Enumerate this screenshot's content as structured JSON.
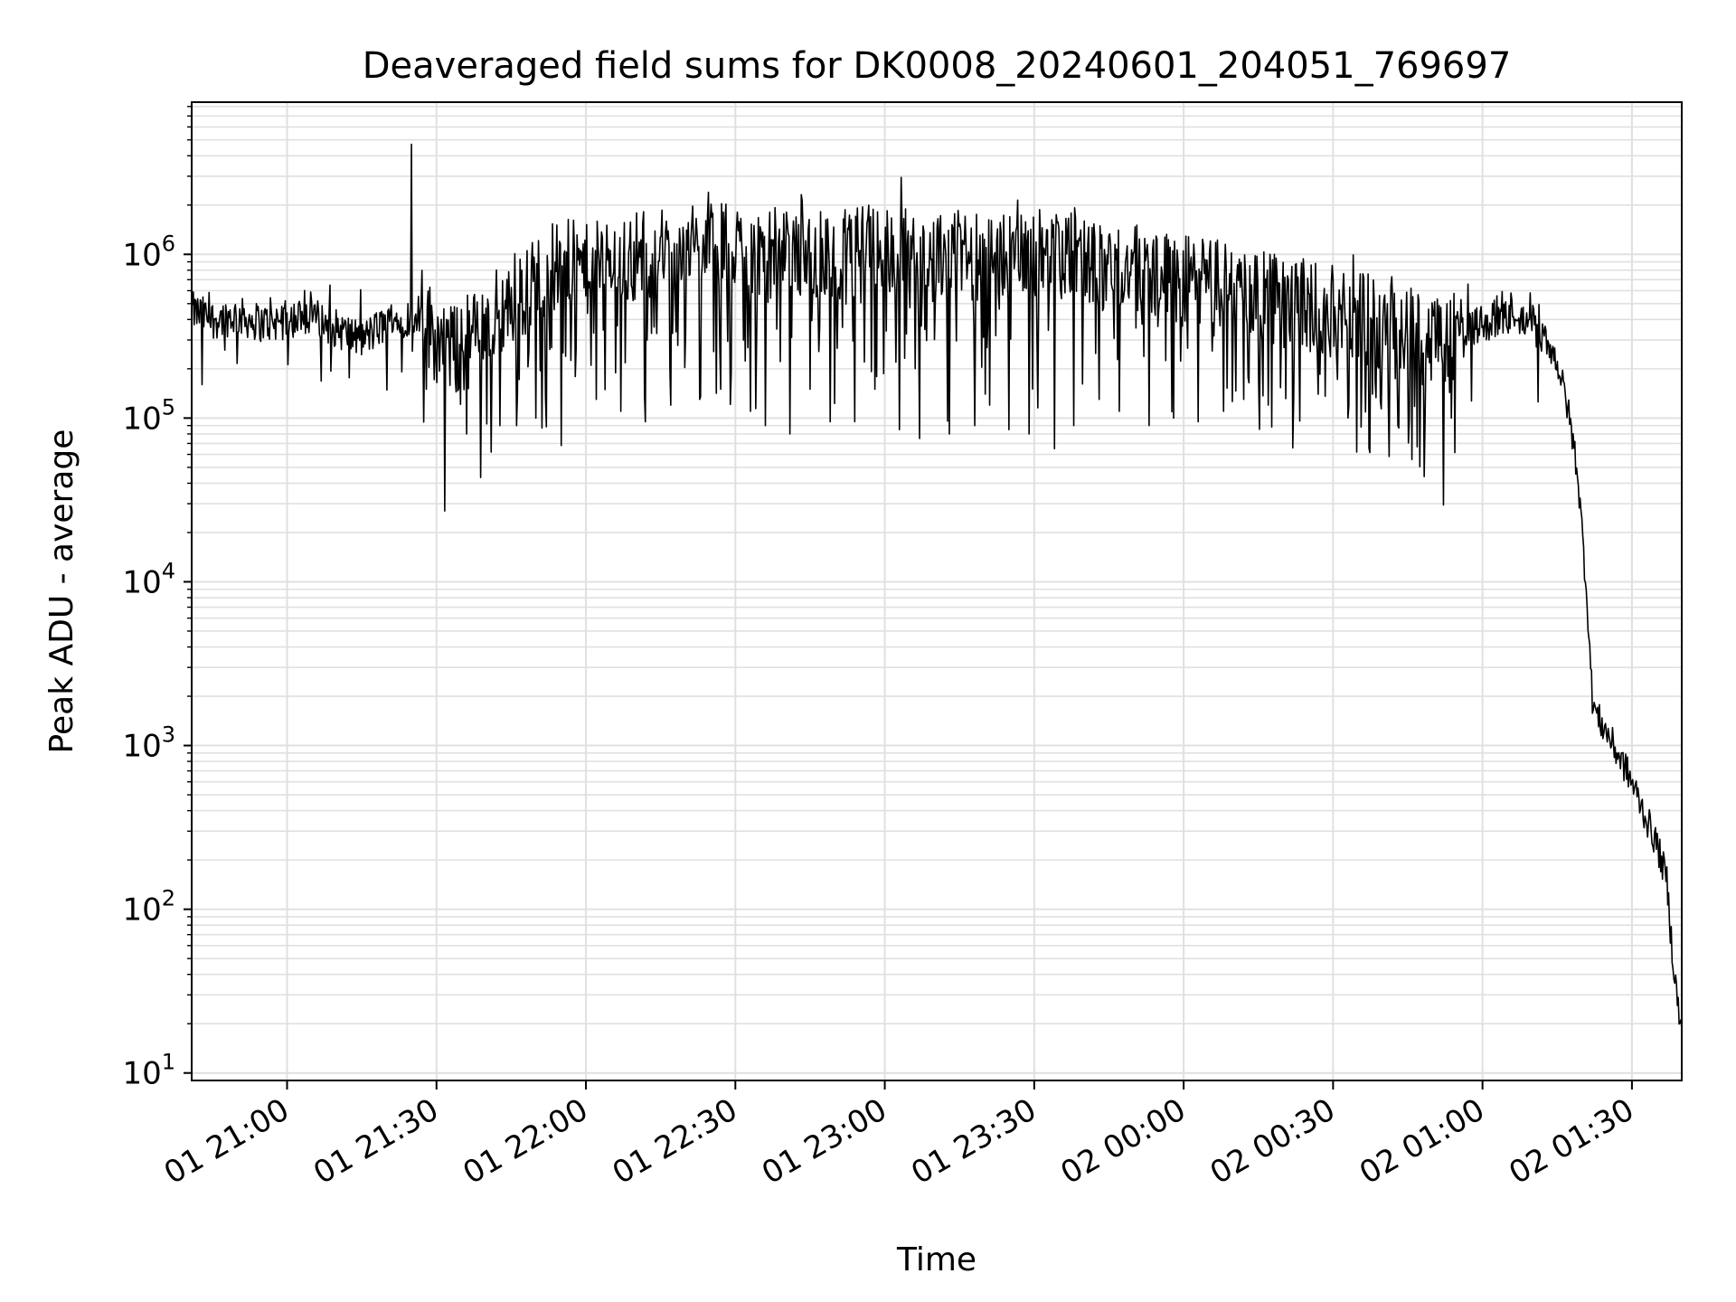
{
  "chart_data": {
    "type": "line",
    "title": "Deaveraged field sums for DK0008_20240601_204051_769697",
    "xlabel": "Time",
    "ylabel": "Peak ADU - average",
    "yscale": "log",
    "grid": "on (major and minor)",
    "legend": "none",
    "xlim": [
      "2024-06-01 20:40:51",
      "2024-06-02 01:40:00"
    ],
    "ylim": [
      9,
      8500000
    ],
    "x_ticks": [
      {
        "time": "2024-06-01 21:00",
        "label": "01 21:00"
      },
      {
        "time": "2024-06-01 21:30",
        "label": "01 21:30"
      },
      {
        "time": "2024-06-01 22:00",
        "label": "01 22:00"
      },
      {
        "time": "2024-06-01 22:30",
        "label": "01 22:30"
      },
      {
        "time": "2024-06-01 23:00",
        "label": "01 23:00"
      },
      {
        "time": "2024-06-01 23:30",
        "label": "01 23:30"
      },
      {
        "time": "2024-06-02 00:00",
        "label": "02 00:00"
      },
      {
        "time": "2024-06-02 00:30",
        "label": "02 00:30"
      },
      {
        "time": "2024-06-02 01:00",
        "label": "02 01:00"
      },
      {
        "time": "2024-06-02 01:30",
        "label": "02 01:30"
      }
    ],
    "y_ticks": [
      {
        "value": 10,
        "base": "10",
        "exp": "1"
      },
      {
        "value": 100,
        "base": "10",
        "exp": "2"
      },
      {
        "value": 1000,
        "base": "10",
        "exp": "3"
      },
      {
        "value": 10000,
        "base": "10",
        "exp": "4"
      },
      {
        "value": 100000,
        "base": "10",
        "exp": "5"
      },
      {
        "value": 1000000,
        "base": "10",
        "exp": "6"
      }
    ],
    "series": [
      {
        "color": "#000000",
        "x": [
          "2024-06-01 20:41",
          "2024-06-01 20:45",
          "2024-06-01 20:50",
          "2024-06-01 20:55",
          "2024-06-01 21:00",
          "2024-06-01 21:05",
          "2024-06-01 21:10",
          "2024-06-01 21:15",
          "2024-06-01 21:20",
          "2024-06-01 21:25",
          "2024-06-01 21:27",
          "2024-06-01 21:30",
          "2024-06-01 21:35",
          "2024-06-01 21:40",
          "2024-06-01 21:45",
          "2024-06-01 21:50",
          "2024-06-01 21:55",
          "2024-06-01 22:00",
          "2024-06-01 22:10",
          "2024-06-01 22:20",
          "2024-06-01 22:30",
          "2024-06-01 22:40",
          "2024-06-01 22:50",
          "2024-06-01 23:00",
          "2024-06-01 23:10",
          "2024-06-01 23:20",
          "2024-06-01 23:30",
          "2024-06-01 23:40",
          "2024-06-01 23:50",
          "2024-06-02 00:00",
          "2024-06-02 00:10",
          "2024-06-02 00:20",
          "2024-06-02 00:30",
          "2024-06-02 00:40",
          "2024-06-02 00:50",
          "2024-06-02 01:00",
          "2024-06-02 01:05",
          "2024-06-02 01:10",
          "2024-06-02 01:13",
          "2024-06-02 01:15",
          "2024-06-02 01:17",
          "2024-06-02 01:19",
          "2024-06-02 01:20",
          "2024-06-02 01:21",
          "2024-06-02 01:22",
          "2024-06-02 01:23",
          "2024-06-02 01:25",
          "2024-06-02 01:27",
          "2024-06-02 01:29",
          "2024-06-02 01:31",
          "2024-06-02 01:33",
          "2024-06-02 01:35",
          "2024-06-02 01:37",
          "2024-06-02 01:38",
          "2024-06-02 01:39",
          "2024-06-02 01:40"
        ],
        "y": [
          450000,
          400000,
          420000,
          380000,
          400000,
          420000,
          350000,
          300000,
          380000,
          420000,
          450000,
          300000,
          250000,
          400000,
          500000,
          700000,
          900000,
          800000,
          1000000,
          1100000,
          1100000,
          1000000,
          1000000,
          1100000,
          950000,
          1000000,
          1000000,
          900000,
          800000,
          700000,
          650000,
          500000,
          450000,
          380000,
          300000,
          380000,
          420000,
          380000,
          300000,
          220000,
          120000,
          50000,
          20000,
          8000,
          2000,
          1500,
          1200,
          900,
          700,
          500,
          350,
          250,
          150,
          60,
          30,
          17
        ],
        "spike": {
          "x": "2024-06-01 21:25",
          "y": 4700000
        },
        "dips": [
          {
            "x": "2024-06-01 20:43",
            "y": 160000
          },
          {
            "x": "2024-06-01 21:28",
            "y": 150000
          },
          {
            "x": "2024-06-01 21:36",
            "y": 80000
          },
          {
            "x": "2024-06-01 21:41",
            "y": 62000
          },
          {
            "x": "2024-06-01 21:46",
            "y": 90000
          },
          {
            "x": "2024-06-01 21:50",
            "y": 100000
          },
          {
            "x": "2024-06-01 21:55",
            "y": 68000
          },
          {
            "x": "2024-06-01 22:02",
            "y": 130000
          },
          {
            "x": "2024-06-01 22:07",
            "y": 110000
          },
          {
            "x": "2024-06-01 22:12",
            "y": 95000
          },
          {
            "x": "2024-06-01 22:17",
            "y": 120000
          },
          {
            "x": "2024-06-01 22:23",
            "y": 135000
          },
          {
            "x": "2024-06-01 22:27",
            "y": 150000
          },
          {
            "x": "2024-06-01 22:33",
            "y": 110000
          },
          {
            "x": "2024-06-01 22:36",
            "y": 90000
          },
          {
            "x": "2024-06-01 22:41",
            "y": 80000
          },
          {
            "x": "2024-06-01 22:45",
            "y": 150000
          },
          {
            "x": "2024-06-01 22:49",
            "y": 95000
          },
          {
            "x": "2024-06-01 22:54",
            "y": 95000
          },
          {
            "x": "2024-06-01 22:58",
            "y": 150000
          },
          {
            "x": "2024-06-01 23:03",
            "y": 85000
          },
          {
            "x": "2024-06-01 23:07",
            "y": 75000
          },
          {
            "x": "2024-06-01 23:13",
            "y": 80000
          },
          {
            "x": "2024-06-01 23:18",
            "y": 90000
          },
          {
            "x": "2024-06-01 23:21",
            "y": 120000
          },
          {
            "x": "2024-06-01 23:25",
            "y": 85000
          },
          {
            "x": "2024-06-01 23:29",
            "y": 80000
          },
          {
            "x": "2024-06-01 23:34",
            "y": 65000
          },
          {
            "x": "2024-06-01 23:38",
            "y": 90000
          },
          {
            "x": "2024-06-01 23:43",
            "y": 130000
          },
          {
            "x": "2024-06-01 23:47",
            "y": 110000
          },
          {
            "x": "2024-06-01 23:53",
            "y": 90000
          },
          {
            "x": "2024-06-01 23:58",
            "y": 100000
          },
          {
            "x": "2024-06-02 00:03",
            "y": 95000
          },
          {
            "x": "2024-06-02 00:08",
            "y": 110000
          },
          {
            "x": "2024-06-02 00:12",
            "y": 130000
          },
          {
            "x": "2024-06-02 00:17",
            "y": 120000
          },
          {
            "x": "2024-06-02 00:22",
            "y": 130000
          },
          {
            "x": "2024-06-02 00:27",
            "y": 140000
          },
          {
            "x": "2024-06-02 00:33",
            "y": 100000
          },
          {
            "x": "2024-06-02 00:38",
            "y": 140000
          },
          {
            "x": "2024-06-02 00:43",
            "y": 90000
          },
          {
            "x": "2024-06-02 00:48",
            "y": 160000
          },
          {
            "x": "2024-06-02 00:53",
            "y": 180000
          }
        ]
      }
    ]
  }
}
